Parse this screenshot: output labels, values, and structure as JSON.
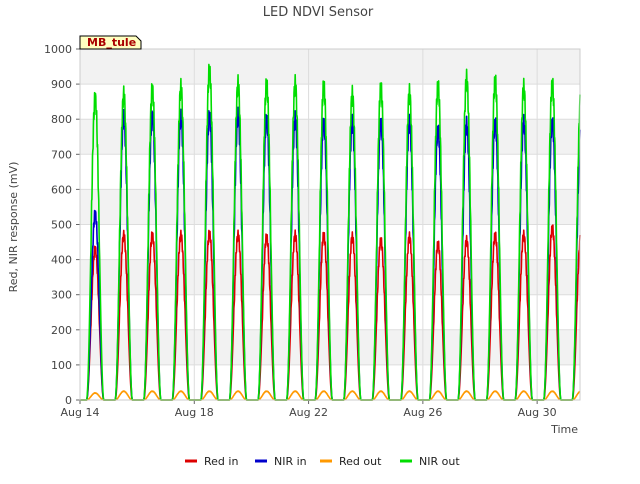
{
  "chart_data": {
    "type": "line",
    "title": "LED NDVI Sensor",
    "xlabel": "Time",
    "ylabel": "Red, NIR response (mV)",
    "ylim": [
      0,
      1000
    ],
    "xlim": [
      "2024-08-14",
      "2024-08-31T12:00"
    ],
    "yticks": [
      0,
      100,
      200,
      300,
      400,
      500,
      600,
      700,
      800,
      900,
      1000
    ],
    "xticks": [
      {
        "date": "2024-08-14",
        "label": "Aug 14"
      },
      {
        "date": "2024-08-18",
        "label": "Aug 18"
      },
      {
        "date": "2024-08-22",
        "label": "Aug 22"
      },
      {
        "date": "2024-08-26",
        "label": "Aug 26"
      },
      {
        "date": "2024-08-30",
        "label": "Aug 30"
      }
    ],
    "grid": true,
    "legend_position": "bottom",
    "site_label": "MB_tule",
    "days": [
      "Aug 14",
      "Aug 15",
      "Aug 16",
      "Aug 17",
      "Aug 18",
      "Aug 19",
      "Aug 20",
      "Aug 21",
      "Aug 22",
      "Aug 23",
      "Aug 24",
      "Aug 25",
      "Aug 26",
      "Aug 27",
      "Aug 28",
      "Aug 29",
      "Aug 30",
      "Aug 31"
    ],
    "series": [
      {
        "name": "Red in",
        "color": "#dd0000",
        "daily_peak": [
          430,
          470,
          470,
          470,
          475,
          470,
          465,
          470,
          470,
          465,
          455,
          465,
          445,
          455,
          470,
          470,
          490,
          470
        ]
      },
      {
        "name": "NIR in",
        "color": "#0000cc",
        "daily_peak": [
          530,
          805,
          810,
          805,
          810,
          810,
          800,
          800,
          790,
          790,
          790,
          790,
          770,
          785,
          790,
          790,
          790,
          770
        ]
      },
      {
        "name": "Red out",
        "color": "#ff9900",
        "daily_peak": [
          20,
          25,
          25,
          25,
          25,
          25,
          25,
          25,
          25,
          25,
          25,
          25,
          25,
          25,
          25,
          25,
          25,
          25
        ]
      },
      {
        "name": "NIR out",
        "color": "#00dd00",
        "daily_peak": [
          860,
          870,
          885,
          890,
          940,
          900,
          900,
          900,
          895,
          870,
          890,
          875,
          895,
          915,
          910,
          890,
          900,
          870
        ]
      }
    ]
  }
}
